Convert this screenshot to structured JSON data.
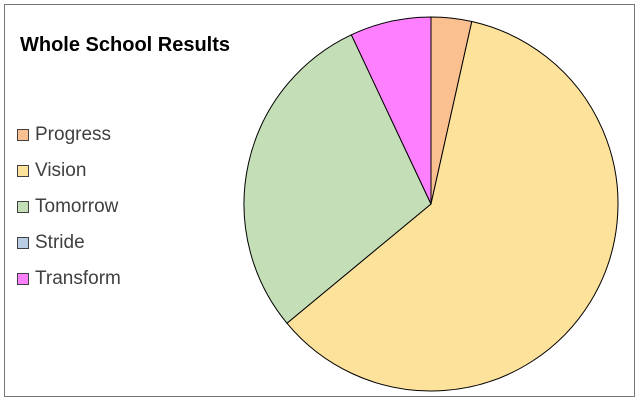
{
  "chart_data": {
    "type": "pie",
    "title": "Whole School Results",
    "categories": [
      "Progress",
      "Vision",
      "Tomorrow",
      "Stride",
      "Transform"
    ],
    "values": [
      3.5,
      60.5,
      29,
      0,
      7
    ],
    "colors": [
      "#fac090",
      "#fde29c",
      "#c4dfb8",
      "#b9cde5",
      "#ff80ff"
    ],
    "start_angle_deg": 0,
    "direction": "clockwise",
    "legend_position": "left"
  }
}
